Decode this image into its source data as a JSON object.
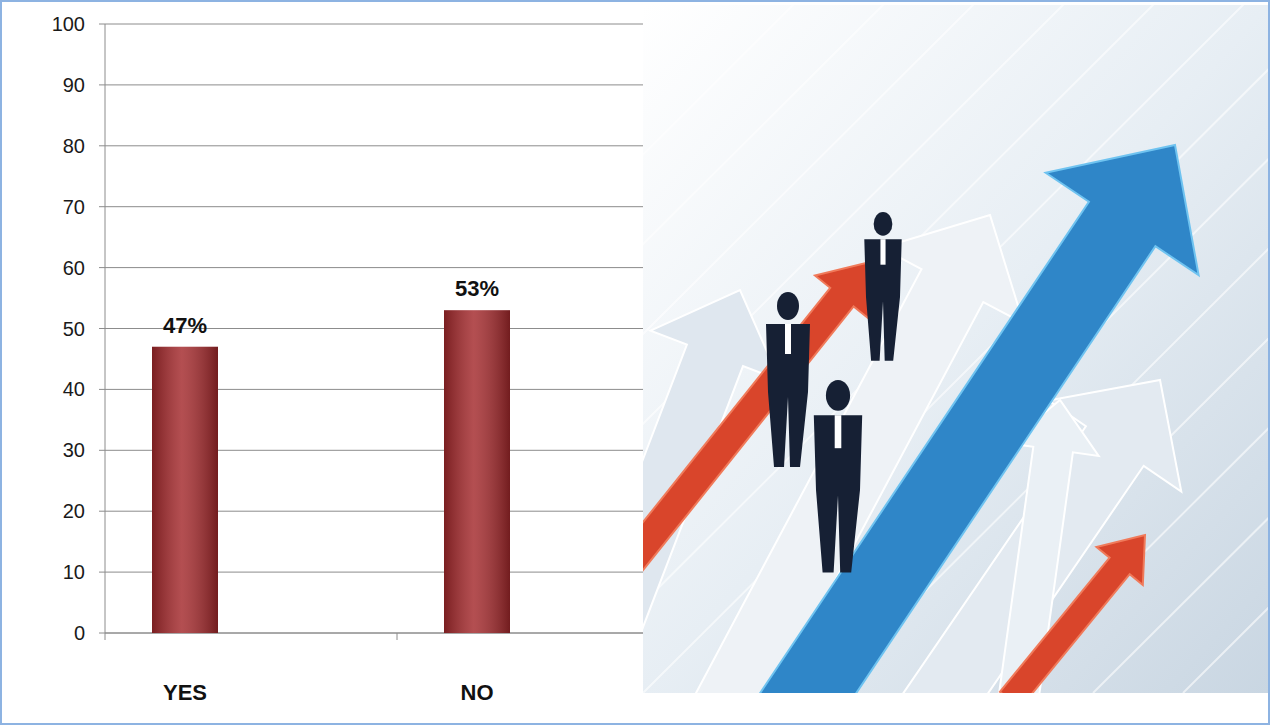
{
  "chart_data": {
    "type": "bar",
    "categories": [
      "YES",
      "NO"
    ],
    "values": [
      47,
      53
    ],
    "value_labels": [
      "47%",
      "53%"
    ],
    "color": "#a3282b",
    "ylim": [
      0,
      100
    ],
    "yticks": [
      0,
      10,
      20,
      30,
      40,
      50,
      60,
      70,
      80,
      90,
      100
    ],
    "grid": true,
    "data_labels": true
  }
}
